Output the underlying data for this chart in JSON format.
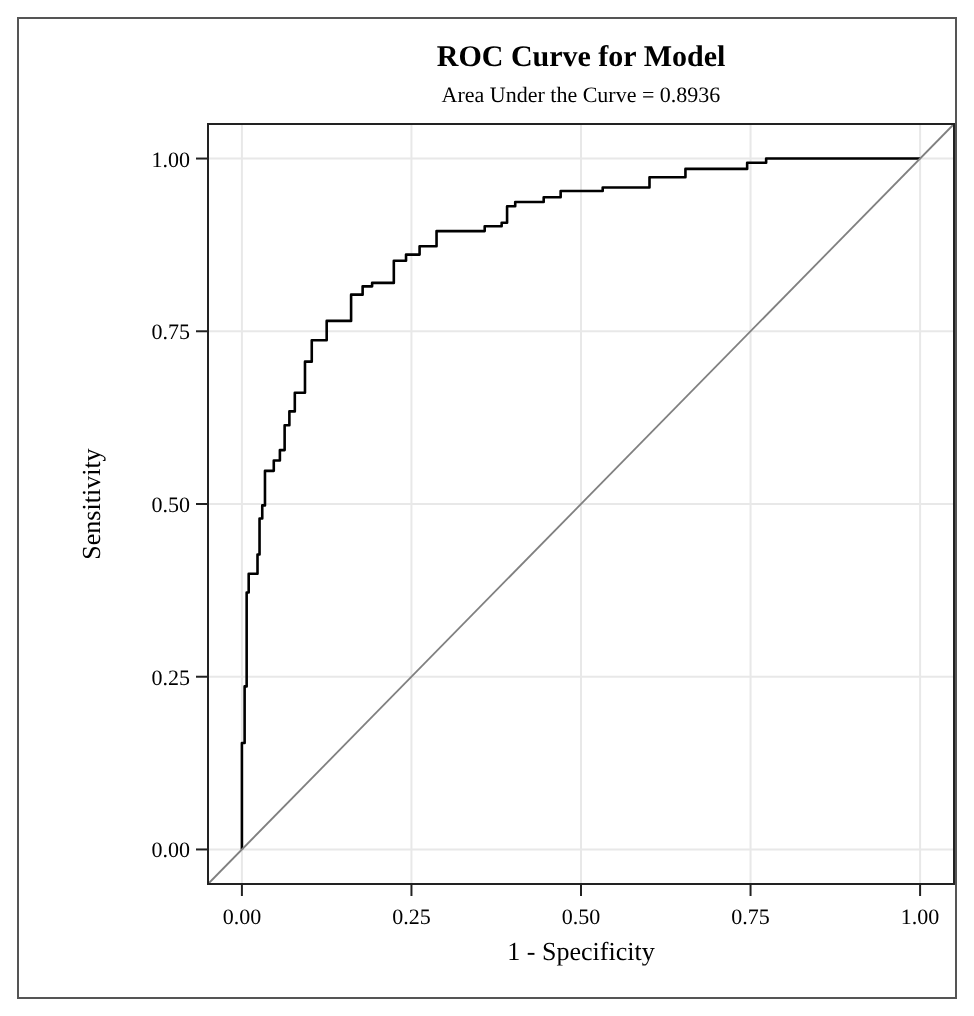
{
  "chart_data": {
    "type": "step",
    "title": "ROC Curve for Model",
    "subtitle": "Area Under the Curve = 0.8936",
    "xlabel": "1 - Specificity",
    "ylabel": "Sensitivity",
    "xlim": [
      -0.05,
      1.05
    ],
    "ylim": [
      -0.05,
      1.05
    ],
    "xticks": [
      {
        "value": 0,
        "label": "0.00"
      },
      {
        "value": 0.25,
        "label": "0.25"
      },
      {
        "value": 0.5,
        "label": "0.50"
      },
      {
        "value": 0.75,
        "label": "0.75"
      },
      {
        "value": 1,
        "label": "1.00"
      }
    ],
    "yticks": [
      {
        "value": 0,
        "label": "0.00"
      },
      {
        "value": 0.25,
        "label": "0.25"
      },
      {
        "value": 0.5,
        "label": "0.50"
      },
      {
        "value": 0.75,
        "label": "0.75"
      },
      {
        "value": 1,
        "label": "1.00"
      }
    ],
    "grid": true,
    "series": [
      {
        "type": "step",
        "color": "#000000",
        "x": [
          0,
          0,
          0.004,
          0.007,
          0.01,
          0.023,
          0.026,
          0.03,
          0.034,
          0.047,
          0.056,
          0.063,
          0.07,
          0.078,
          0.093,
          0.103,
          0.125,
          0.161,
          0.178,
          0.192,
          0.224,
          0.242,
          0.262,
          0.287,
          0.358,
          0.383,
          0.391,
          0.403,
          0.445,
          0.47,
          0.532,
          0.601,
          0.654,
          0.745,
          0.773,
          1
        ],
        "values": [
          0,
          0.154,
          0.236,
          0.372,
          0.399,
          0.427,
          0.479,
          0.498,
          0.548,
          0.563,
          0.578,
          0.614,
          0.634,
          0.661,
          0.706,
          0.737,
          0.765,
          0.803,
          0.815,
          0.82,
          0.852,
          0.861,
          0.873,
          0.895,
          0.902,
          0.907,
          0.931,
          0.937,
          0.944,
          0.953,
          0.958,
          0.973,
          0.985,
          0.994,
          1,
          1
        ]
      },
      {
        "type": "line",
        "color": "#808080",
        "x": [
          -0.05,
          1.05
        ],
        "values": [
          -0.05,
          1.05
        ]
      }
    ]
  }
}
